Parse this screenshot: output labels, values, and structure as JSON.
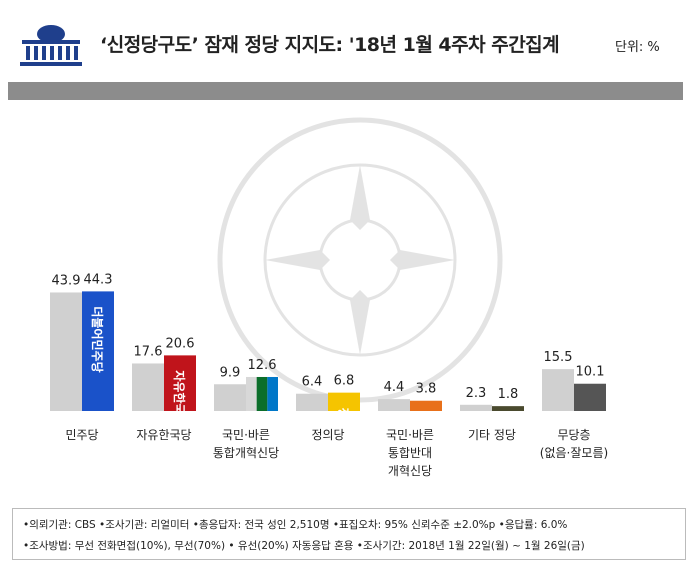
{
  "header": {
    "title": "‘신정당구도’ 잠재 정당 지지도: '18년 1월 4주차 주간집계",
    "unit": "단위: %"
  },
  "chart_data": {
    "type": "bar",
    "title": "‘신정당구도’ 잠재 정당 지지도: '18년 1월 4주차 주간집계",
    "ylabel": "",
    "ylim": [
      0,
      50
    ],
    "categories": [
      [
        "민주당"
      ],
      [
        "자유한국당"
      ],
      [
        "국민·바른",
        "통합개혁신당"
      ],
      [
        "정의당"
      ],
      [
        "국민·바른",
        "통합반대",
        "개혁신당"
      ],
      [
        "기타 정당"
      ],
      [
        "무당층",
        "(없음·잘모름)"
      ]
    ],
    "series": [
      {
        "values": [
          43.9,
          17.6,
          9.9,
          6.4,
          4.4,
          2.3,
          15.5
        ],
        "color": "#d0d0d0"
      },
      {
        "values": [
          44.3,
          20.6,
          12.6,
          6.8,
          3.8,
          1.8,
          10.1
        ],
        "colors": [
          "#1a52c9",
          "#c0141b",
          "split",
          "#f5c400",
          "#e8701a",
          "#4a4a2e",
          "#555555"
        ]
      }
    ],
    "bar_logos": [
      "더불어민주당",
      "자유한국당",
      "",
      "정의당",
      "",
      "",
      ""
    ]
  },
  "footer": {
    "line1": "•의뢰기관: CBS •조사기관: 리얼미터 •총응답자: 전국 성인 2,510명 •표집오차: 95% 신뢰수준 ±2.0%p •응답률: 6.0%",
    "line2": "•조사방법: 무선 전화면접(10%), 무선(70%) • 유선(20%) 자동응답 혼용 •조사기간: 2018년 1월 22일(월) ~ 1월 26일(금)"
  }
}
